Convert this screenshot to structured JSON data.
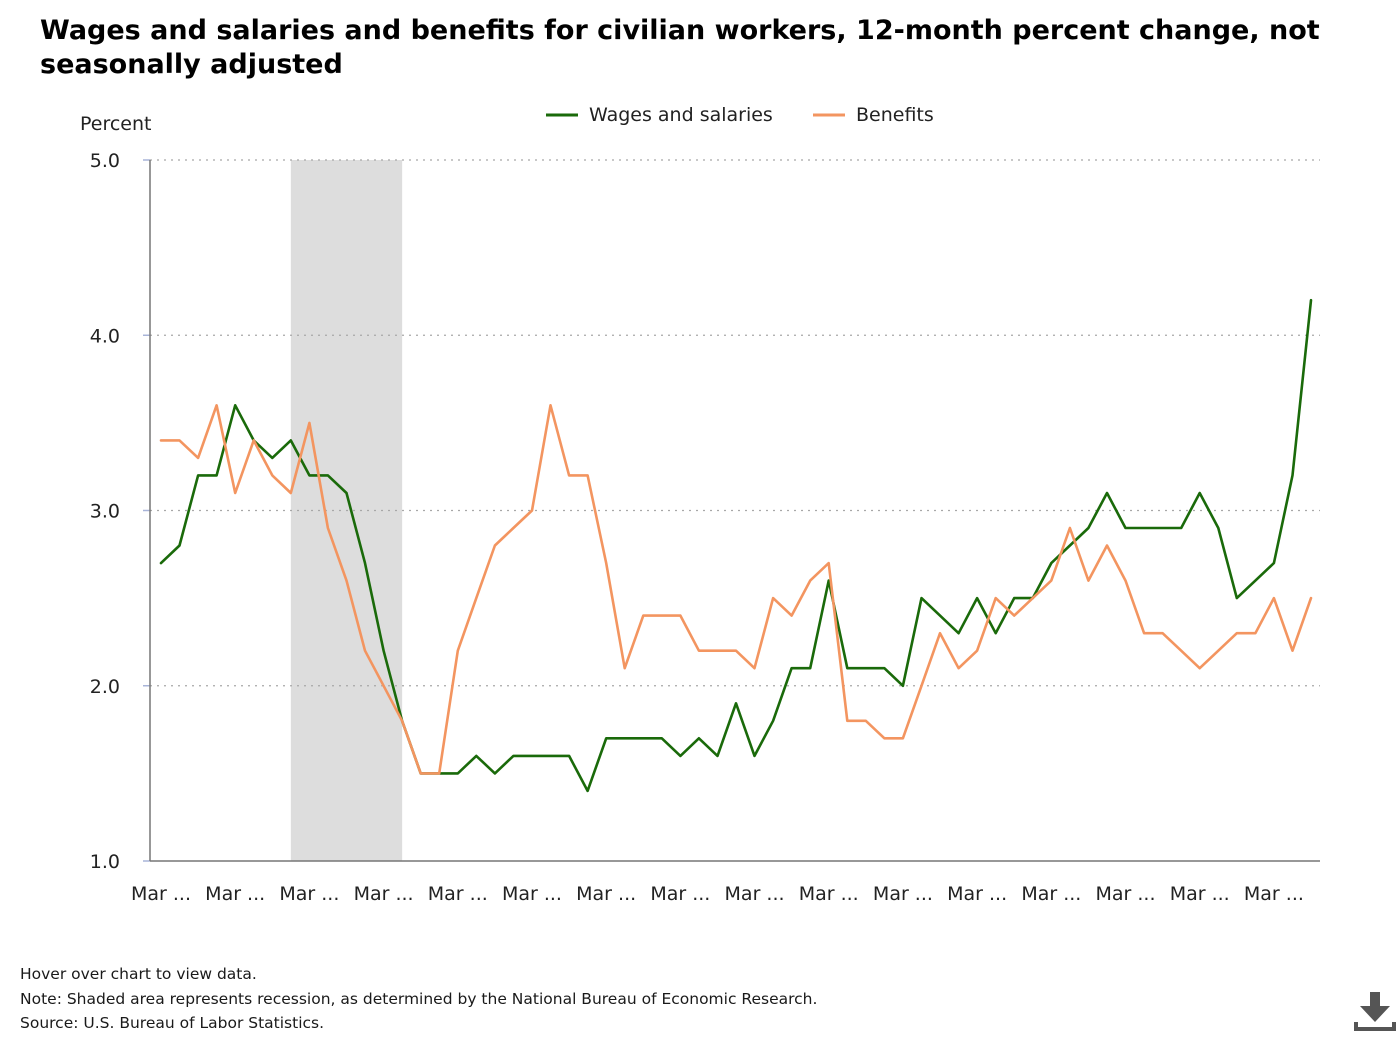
{
  "page": {
    "title": "Wages and salaries and benefits for civilian workers, 12-month percent change, not seasonally adjusted",
    "notes": [
      "Hover over chart to view data.",
      "Note: Shaded area represents recession, as determined by the National Bureau of Economic Research.",
      "Source: U.S. Bureau of Labor Statistics."
    ],
    "download_icon": "download-icon"
  },
  "chart_data": {
    "type": "line",
    "title": "Wages and salaries and benefits for civilian workers, 12-month percent change, not seasonally adjusted",
    "ylabel": "Percent",
    "xlabel": "",
    "ylim": [
      1.0,
      5.0
    ],
    "yticks": [
      "1.0",
      "2.0",
      "3.0",
      "4.0",
      "5.0"
    ],
    "xtick_labels": [
      "Mar ...",
      "Mar ...",
      "Mar ...",
      "Mar ...",
      "Mar ...",
      "Mar ...",
      "Mar ...",
      "Mar ...",
      "Mar ...",
      "Mar ...",
      "Mar ...",
      "Mar ...",
      "Mar ...",
      "Mar ...",
      "Mar ...",
      "Mar ..."
    ],
    "x_points_per_tick": 4,
    "grid": "horizontal dotted",
    "legend_position": "top-center",
    "recession_shade": {
      "from_index": 7,
      "to_index": 13,
      "color": "#dddddd"
    },
    "series": [
      {
        "name": "Wages and salaries",
        "color": "#1a6a0a",
        "values": [
          2.7,
          2.8,
          3.2,
          3.2,
          3.6,
          3.4,
          3.3,
          3.4,
          3.2,
          3.2,
          3.1,
          2.7,
          2.2,
          1.8,
          1.5,
          1.5,
          1.5,
          1.6,
          1.5,
          1.6,
          1.6,
          1.6,
          1.6,
          1.4,
          1.7,
          1.7,
          1.7,
          1.7,
          1.6,
          1.7,
          1.6,
          1.9,
          1.6,
          1.8,
          2.1,
          2.1,
          2.6,
          2.1,
          2.1,
          2.1,
          2.0,
          2.5,
          2.4,
          2.3,
          2.5,
          2.3,
          2.5,
          2.5,
          2.7,
          2.8,
          2.9,
          3.1,
          2.9,
          2.9,
          2.9,
          2.9,
          3.1,
          2.9,
          2.5,
          2.6,
          2.7,
          3.2,
          4.2
        ]
      },
      {
        "name": "Benefits",
        "color": "#f39560",
        "values": [
          3.4,
          3.4,
          3.3,
          3.6,
          3.1,
          3.4,
          3.2,
          3.1,
          3.5,
          2.9,
          2.6,
          2.2,
          2.0,
          1.8,
          1.5,
          1.5,
          2.2,
          2.5,
          2.8,
          2.9,
          3.0,
          3.6,
          3.2,
          3.2,
          2.7,
          2.1,
          2.4,
          2.4,
          2.4,
          2.2,
          2.2,
          2.2,
          2.1,
          2.5,
          2.4,
          2.6,
          2.7,
          1.8,
          1.8,
          1.7,
          1.7,
          2.0,
          2.3,
          2.1,
          2.2,
          2.5,
          2.4,
          2.5,
          2.6,
          2.9,
          2.6,
          2.8,
          2.6,
          2.3,
          2.3,
          2.2,
          2.1,
          2.2,
          2.3,
          2.3,
          2.5,
          2.2,
          2.5
        ]
      }
    ]
  }
}
